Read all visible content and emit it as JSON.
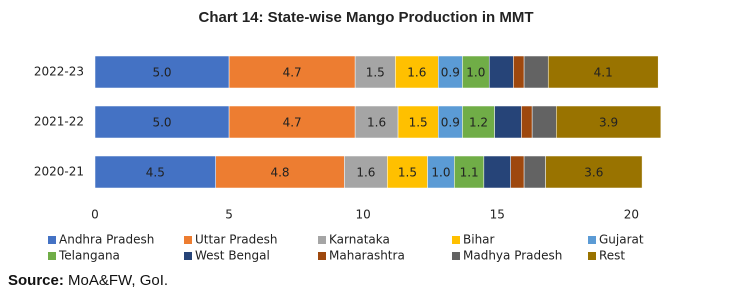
{
  "chart_data": {
    "type": "stacked-bar-horizontal",
    "title": "Chart 14: State-wise Mango Production in MMT",
    "categories": [
      "2022-23",
      "2021-22",
      "2020-21"
    ],
    "series": [
      {
        "name": "Andhra Pradesh",
        "color": "#4472c4",
        "values": [
          5,
          5,
          4.5
        ],
        "value_labels": [
          "5.0",
          "5.0",
          "4.5"
        ]
      },
      {
        "name": "Uttar Pradesh",
        "color": "#ed7d31",
        "values": [
          4.7,
          4.7,
          4.8
        ]
      },
      {
        "name": "Karnataka",
        "color": "#a5a5a5",
        "values": [
          1.5,
          1.6,
          1.6
        ]
      },
      {
        "name": "Bihar",
        "color": "#ffc000",
        "values": [
          1.6,
          1.5,
          1.5
        ]
      },
      {
        "name": "Gujarat",
        "color": "#5b9bd5",
        "values": [
          0.9,
          0.9,
          1
        ],
        "value_labels": [
          "0.9",
          "0.9",
          "1.0"
        ]
      },
      {
        "name": "Telangana",
        "color": "#70ad47",
        "values": [
          1,
          1.2,
          1.1
        ],
        "value_labels": [
          "1.0",
          "1.2",
          "1.1"
        ]
      },
      {
        "name": "West Bengal",
        "color": "#264478",
        "values": [
          0.9,
          1,
          1
        ]
      },
      {
        "name": "Maharashtra",
        "color": "#9e480e",
        "values": [
          0.4,
          0.4,
          0.5
        ]
      },
      {
        "name": "Madhya Pradesh",
        "color": "#636363",
        "values": [
          0.9,
          0.9,
          0.8
        ]
      },
      {
        "name": "Rest",
        "color": "#997300",
        "values": [
          4.1,
          3.9,
          3.6
        ]
      }
    ],
    "labeled_series": [
      0,
      1,
      2,
      3,
      4,
      5,
      9
    ],
    "xlim": [
      0,
      22
    ],
    "xticks": [
      0,
      5,
      10,
      15,
      20
    ]
  },
  "source_label": "Source:",
  "source": "MoA&FW, GoI."
}
